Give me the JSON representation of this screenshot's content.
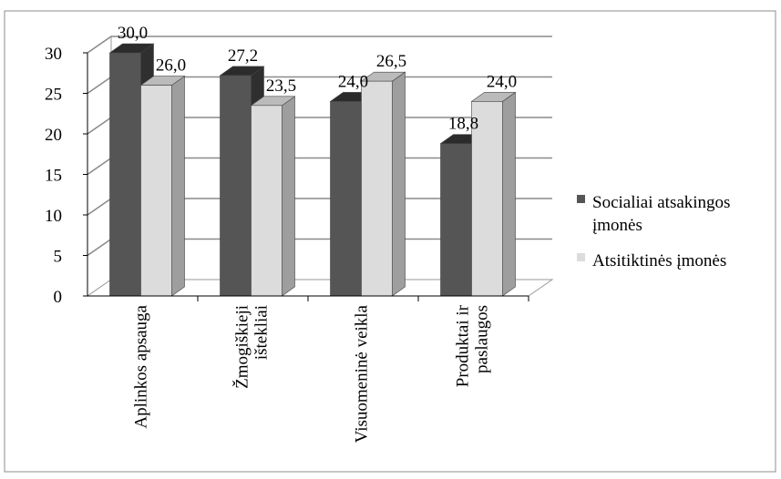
{
  "chart_data": {
    "type": "bar",
    "style": "3d-clustered-column",
    "categories": [
      "Aplinkos apsauga",
      "Žmogiškieji ištekliai",
      "Visuomeninė veikla",
      "Produktai ir paslaugos"
    ],
    "category_lines": [
      [
        "Aplinkos apsauga"
      ],
      [
        "Žmogiškieji",
        "ištekliai"
      ],
      [
        "Visuomeninė veikla"
      ],
      [
        "Produktai ir",
        "paslaugos"
      ]
    ],
    "series": [
      {
        "name": "Socialiai atsakingos įmonės",
        "legend_lines": [
          "Socialiai atsakingos",
          "įmonės"
        ],
        "values": [
          30.0,
          27.2,
          24.0,
          18.8
        ],
        "labels": [
          "30,0",
          "27,2",
          "24,0",
          "18,8"
        ],
        "color": "#555555"
      },
      {
        "name": "Atsitiktinės įmonės",
        "legend_lines": [
          "Atsitiktinės įmonės"
        ],
        "values": [
          26.0,
          23.5,
          26.5,
          24.0
        ],
        "labels": [
          "26,0",
          "23,5",
          "26,5",
          "24,0"
        ],
        "color": "#dcdcdc"
      }
    ],
    "ylim": [
      0,
      30
    ],
    "yticks": [
      "0",
      "5",
      "10",
      "15",
      "20",
      "25",
      "30"
    ],
    "grid": true,
    "legend_position": "right",
    "xlabel": "",
    "ylabel": ""
  }
}
